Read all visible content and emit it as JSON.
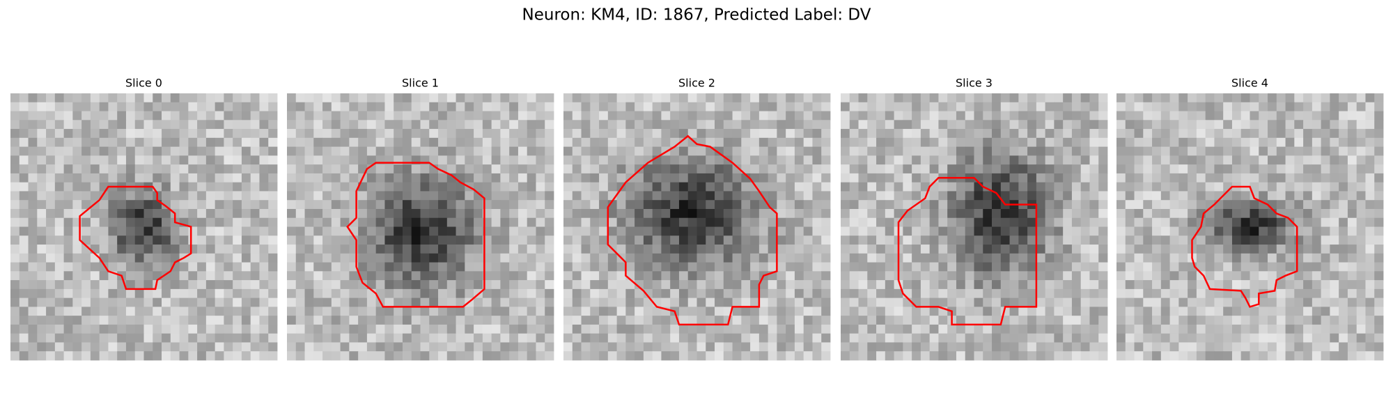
{
  "title": "Neuron: KM4, ID: 1867, Predicted Label: DV",
  "panels": [
    {
      "title": "Slice 0"
    },
    {
      "title": "Slice 1"
    },
    {
      "title": "Slice 2"
    },
    {
      "title": "Slice 3"
    },
    {
      "title": "Slice 4"
    }
  ]
}
